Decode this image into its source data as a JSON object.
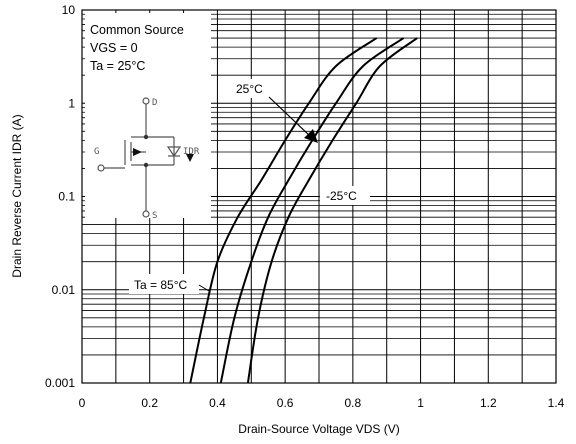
{
  "chart_data": {
    "type": "line",
    "title": "",
    "xlabel": "Drain-Source Voltage VDS (V)",
    "ylabel": "Drain Reverse Current   IDR (A)",
    "xlim": [
      0,
      1.4
    ],
    "ylim": [
      0.001,
      10
    ],
    "yscale": "log",
    "x_ticks": [
      "0",
      "0.2",
      "0.4",
      "0.6",
      "0.8",
      "1",
      "1.2",
      "1.4"
    ],
    "y_ticks": [
      "0.001",
      "0.01",
      "0.1",
      "1",
      "10"
    ],
    "grid": true,
    "conditions": [
      "Common Source",
      "VGS = 0",
      "Ta = 25°C"
    ],
    "series": [
      {
        "name": "Ta = 85°C",
        "points": [
          [
            0.32,
            0.001
          ],
          [
            0.36,
            0.005
          ],
          [
            0.4,
            0.02
          ],
          [
            0.46,
            0.06
          ],
          [
            0.53,
            0.15
          ],
          [
            0.6,
            0.4
          ],
          [
            0.67,
            1.0
          ],
          [
            0.75,
            2.5
          ],
          [
            0.87,
            5
          ]
        ]
      },
      {
        "name": "25°C",
        "points": [
          [
            0.41,
            0.001
          ],
          [
            0.45,
            0.005
          ],
          [
            0.5,
            0.02
          ],
          [
            0.55,
            0.06
          ],
          [
            0.61,
            0.15
          ],
          [
            0.68,
            0.4
          ],
          [
            0.75,
            1.0
          ],
          [
            0.83,
            2.5
          ],
          [
            0.95,
            5
          ]
        ]
      },
      {
        "name": "-25°C",
        "points": [
          [
            0.49,
            0.001
          ],
          [
            0.52,
            0.005
          ],
          [
            0.56,
            0.02
          ],
          [
            0.61,
            0.06
          ],
          [
            0.67,
            0.15
          ],
          [
            0.74,
            0.4
          ],
          [
            0.81,
            1.0
          ],
          [
            0.88,
            2.5
          ],
          [
            0.99,
            5
          ]
        ]
      }
    ],
    "annotations": [
      {
        "text": "Ta = 85°C",
        "series": "Ta = 85°C"
      },
      {
        "text": "25°C",
        "series": "25°C"
      },
      {
        "text": "-25°C",
        "series": "-25°C"
      }
    ],
    "schematic": {
      "drain": "D",
      "gate": "G",
      "source": "S",
      "current": "IDR"
    }
  }
}
